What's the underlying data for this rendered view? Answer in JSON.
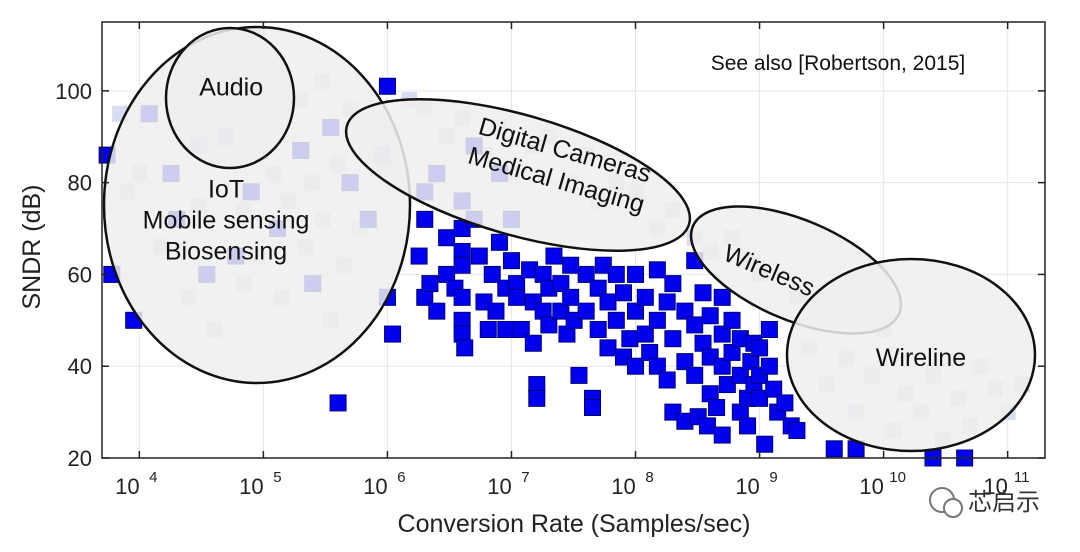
{
  "chart_data": {
    "type": "scatter",
    "title": "",
    "xlabel": "Conversion Rate (Samples/sec)",
    "ylabel": "SNDR (dB)",
    "x_scale": "log",
    "xlim": [
      5000,
      200000000000
    ],
    "ylim": [
      20,
      115
    ],
    "y_ticks": [
      20,
      40,
      60,
      80,
      100
    ],
    "x_ticks": [
      {
        "value": 10000,
        "base": "10",
        "exp": "4"
      },
      {
        "value": 100000,
        "base": "10",
        "exp": "5"
      },
      {
        "value": 1000000,
        "base": "10",
        "exp": "6"
      },
      {
        "value": 10000000,
        "base": "10",
        "exp": "7"
      },
      {
        "value": 100000000,
        "base": "10",
        "exp": "8"
      },
      {
        "value": 1000000000,
        "base": "10",
        "exp": "9"
      },
      {
        "value": 10000000000,
        "base": "10",
        "exp": "10"
      },
      {
        "value": 100000000000,
        "base": "10",
        "exp": "11"
      }
    ],
    "grid": true,
    "marker": "square",
    "marker_color": "#0000ee",
    "faded_marker_color": "#d8dcf2",
    "annotation": "See also [Robertson, 2015]",
    "regions": [
      {
        "label_lines": [
          "Audio"
        ],
        "x": 55000,
        "y": 101
      },
      {
        "label_lines": [
          "IoT",
          "Mobile sensing",
          "Biosensing"
        ],
        "x": 50000,
        "y": 72
      },
      {
        "label_lines": [
          "Digital Cameras",
          "Medical Imaging"
        ],
        "x": 25000000,
        "y": 84
      },
      {
        "label_lines": [
          "Wireless"
        ],
        "x": 1200000000,
        "y": 61
      },
      {
        "label_lines": [
          "Wireline"
        ],
        "x": 20000000000,
        "y": 42
      }
    ],
    "points": [
      [
        5500,
        86
      ],
      [
        6000,
        60
      ],
      [
        9000,
        50
      ],
      [
        12000,
        95
      ],
      [
        18000,
        82
      ],
      [
        20000,
        72
      ],
      [
        30000,
        88
      ],
      [
        35000,
        60
      ],
      [
        50000,
        90
      ],
      [
        60000,
        64
      ],
      [
        80000,
        78
      ],
      [
        130000,
        70
      ],
      [
        200000,
        87
      ],
      [
        250000,
        58
      ],
      [
        350000,
        92
      ],
      [
        500000,
        80
      ],
      [
        700000,
        72
      ],
      [
        900000,
        86
      ],
      [
        1000000,
        101
      ],
      [
        1000000,
        55
      ],
      [
        1100000,
        47
      ],
      [
        400000,
        32
      ],
      [
        1800000,
        64
      ],
      [
        2000000,
        78
      ],
      [
        2000000,
        72
      ],
      [
        2000000,
        55
      ],
      [
        2200000,
        58
      ],
      [
        2500000,
        82
      ],
      [
        2500000,
        52
      ],
      [
        3000000,
        68
      ],
      [
        3000000,
        60
      ],
      [
        3500000,
        57
      ],
      [
        4000000,
        76
      ],
      [
        4000000,
        70
      ],
      [
        4000000,
        65
      ],
      [
        4000000,
        62
      ],
      [
        4000000,
        55
      ],
      [
        4000000,
        50
      ],
      [
        4000000,
        47
      ],
      [
        4200000,
        44
      ],
      [
        5000000,
        88
      ],
      [
        5000000,
        72
      ],
      [
        5500000,
        64
      ],
      [
        6000000,
        54
      ],
      [
        6500000,
        48
      ],
      [
        7000000,
        60
      ],
      [
        7500000,
        52
      ],
      [
        8000000,
        82
      ],
      [
        8000000,
        67
      ],
      [
        9000000,
        57
      ],
      [
        9000000,
        48
      ],
      [
        10000000,
        72
      ],
      [
        10000000,
        63
      ],
      [
        11000000,
        58
      ],
      [
        11000000,
        55
      ],
      [
        12000000,
        48
      ],
      [
        14000000,
        61
      ],
      [
        15000000,
        54
      ],
      [
        15000000,
        45
      ],
      [
        16000000,
        36
      ],
      [
        16000000,
        33
      ],
      [
        18000000,
        60
      ],
      [
        18000000,
        52
      ],
      [
        20000000,
        57
      ],
      [
        20000000,
        49
      ],
      [
        22000000,
        64
      ],
      [
        25000000,
        58
      ],
      [
        25000000,
        52
      ],
      [
        28000000,
        47
      ],
      [
        30000000,
        62
      ],
      [
        30000000,
        55
      ],
      [
        32000000,
        50
      ],
      [
        35000000,
        38
      ],
      [
        40000000,
        60
      ],
      [
        40000000,
        52
      ],
      [
        45000000,
        33
      ],
      [
        45000000,
        31
      ],
      [
        50000000,
        57
      ],
      [
        50000000,
        48
      ],
      [
        55000000,
        62
      ],
      [
        60000000,
        54
      ],
      [
        60000000,
        44
      ],
      [
        70000000,
        60
      ],
      [
        70000000,
        50
      ],
      [
        80000000,
        42
      ],
      [
        80000000,
        56
      ],
      [
        90000000,
        46
      ],
      [
        100000000,
        60
      ],
      [
        100000000,
        52
      ],
      [
        100000000,
        40
      ],
      [
        120000000,
        55
      ],
      [
        120000000,
        47
      ],
      [
        130000000,
        43
      ],
      [
        150000000,
        61
      ],
      [
        150000000,
        50
      ],
      [
        150000000,
        40
      ],
      [
        180000000,
        54
      ],
      [
        180000000,
        37
      ],
      [
        200000000,
        58
      ],
      [
        200000000,
        46
      ],
      [
        200000000,
        30
      ],
      [
        250000000,
        52
      ],
      [
        250000000,
        41
      ],
      [
        250000000,
        28
      ],
      [
        300000000,
        63
      ],
      [
        300000000,
        49
      ],
      [
        300000000,
        38
      ],
      [
        320000000,
        29
      ],
      [
        350000000,
        56
      ],
      [
        350000000,
        45
      ],
      [
        380000000,
        27
      ],
      [
        400000000,
        51
      ],
      [
        400000000,
        42
      ],
      [
        400000000,
        34
      ],
      [
        450000000,
        31
      ],
      [
        500000000,
        55
      ],
      [
        500000000,
        47
      ],
      [
        500000000,
        40
      ],
      [
        500000000,
        25
      ],
      [
        550000000,
        36
      ],
      [
        600000000,
        50
      ],
      [
        600000000,
        43
      ],
      [
        700000000,
        46
      ],
      [
        700000000,
        38
      ],
      [
        700000000,
        30
      ],
      [
        800000000,
        33
      ],
      [
        800000000,
        27
      ],
      [
        850000000,
        41
      ],
      [
        900000000,
        45
      ],
      [
        900000000,
        36
      ],
      [
        1000000000,
        44
      ],
      [
        1000000000,
        38
      ],
      [
        1000000000,
        33
      ],
      [
        1100000000,
        23
      ],
      [
        1200000000,
        48
      ],
      [
        1200000000,
        40
      ],
      [
        1300000000,
        35
      ],
      [
        1400000000,
        30
      ],
      [
        1600000000,
        32
      ],
      [
        1800000000,
        27
      ],
      [
        2000000000,
        26
      ],
      [
        4000000000,
        22
      ],
      [
        6000000000,
        22
      ],
      [
        25000000000,
        20
      ],
      [
        45000000000,
        20
      ]
    ],
    "faded_points": [
      [
        7000,
        95
      ],
      [
        8000,
        78
      ],
      [
        10000,
        82
      ],
      [
        15000,
        66
      ],
      [
        20000,
        100
      ],
      [
        25000,
        55
      ],
      [
        30000,
        75
      ],
      [
        40000,
        48
      ],
      [
        40000,
        110
      ],
      [
        45000,
        85
      ],
      [
        60000,
        98
      ],
      [
        70000,
        74
      ],
      [
        70000,
        58
      ],
      [
        90000,
        64
      ],
      [
        90000,
        112
      ],
      [
        110000,
        93
      ],
      [
        120000,
        82
      ],
      [
        140000,
        55
      ],
      [
        160000,
        76
      ],
      [
        200000,
        98
      ],
      [
        220000,
        66
      ],
      [
        250000,
        80
      ],
      [
        300000,
        102
      ],
      [
        300000,
        72
      ],
      [
        350000,
        50
      ],
      [
        400000,
        84
      ],
      [
        450000,
        62
      ],
      [
        500000,
        96
      ],
      [
        600000,
        70
      ],
      [
        700000,
        86
      ],
      [
        1500000,
        98
      ],
      [
        2000000,
        96
      ],
      [
        3000000,
        90
      ],
      [
        4000000,
        94
      ],
      [
        6000000,
        86
      ],
      [
        8000000,
        92
      ],
      [
        10000000,
        82
      ],
      [
        15000000,
        88
      ],
      [
        20000000,
        90
      ],
      [
        30000000,
        80
      ],
      [
        40000000,
        86
      ],
      [
        50000000,
        76
      ],
      [
        70000000,
        80
      ],
      [
        100000000,
        78
      ],
      [
        150000000,
        70
      ],
      [
        200000000,
        74
      ],
      [
        300000000,
        68
      ],
      [
        400000000,
        65
      ],
      [
        600000000,
        68
      ],
      [
        800000000,
        63
      ],
      [
        1000000000,
        60
      ],
      [
        2000000000,
        55
      ],
      [
        3000000000,
        52
      ],
      [
        4000000000,
        57
      ],
      [
        2500000000,
        44
      ],
      [
        3500000000,
        36
      ],
      [
        5000000000,
        42
      ],
      [
        6000000000,
        30
      ],
      [
        8000000000,
        38
      ],
      [
        10000000000,
        48
      ],
      [
        12000000000,
        26
      ],
      [
        15000000000,
        34
      ],
      [
        20000000000,
        30
      ],
      [
        25000000000,
        38
      ],
      [
        30000000000,
        24
      ],
      [
        40000000000,
        33
      ],
      [
        50000000000,
        27
      ],
      [
        60000000000,
        40
      ],
      [
        80000000000,
        35
      ],
      [
        100000000000,
        30
      ],
      [
        130000000000,
        36
      ]
    ]
  },
  "watermark": "芯启示"
}
